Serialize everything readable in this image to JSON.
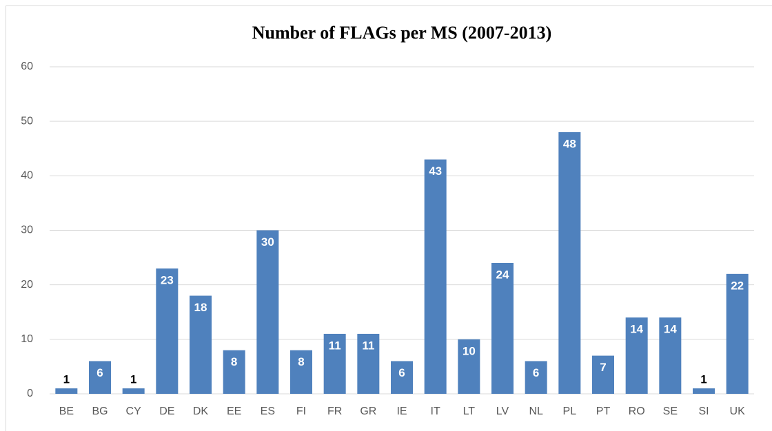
{
  "chart_data": {
    "type": "bar",
    "title": "Number of FLAGs per MS (2007-2013)",
    "categories": [
      "BE",
      "BG",
      "CY",
      "DE",
      "DK",
      "EE",
      "ES",
      "FI",
      "FR",
      "GR",
      "IE",
      "IT",
      "LT",
      "LV",
      "NL",
      "PL",
      "PT",
      "RO",
      "SE",
      "SI",
      "UK"
    ],
    "values": [
      1,
      6,
      1,
      23,
      18,
      8,
      30,
      8,
      11,
      11,
      6,
      43,
      10,
      24,
      6,
      48,
      7,
      14,
      14,
      1,
      22
    ],
    "color": "#4f81bd",
    "ylim": [
      0,
      60
    ],
    "yticks": [
      0,
      10,
      20,
      30,
      40,
      50,
      60
    ],
    "grid": true
  }
}
